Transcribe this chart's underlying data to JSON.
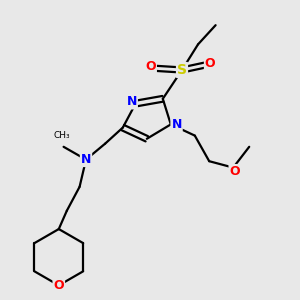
{
  "bg_color": "#e8e8e8",
  "atom_colors": {
    "C": "#000000",
    "N": "#0000ff",
    "O": "#ff0000",
    "S": "#cccc00"
  },
  "bond_color": "#000000",
  "line_width": 1.6,
  "font_size_atom": 9
}
